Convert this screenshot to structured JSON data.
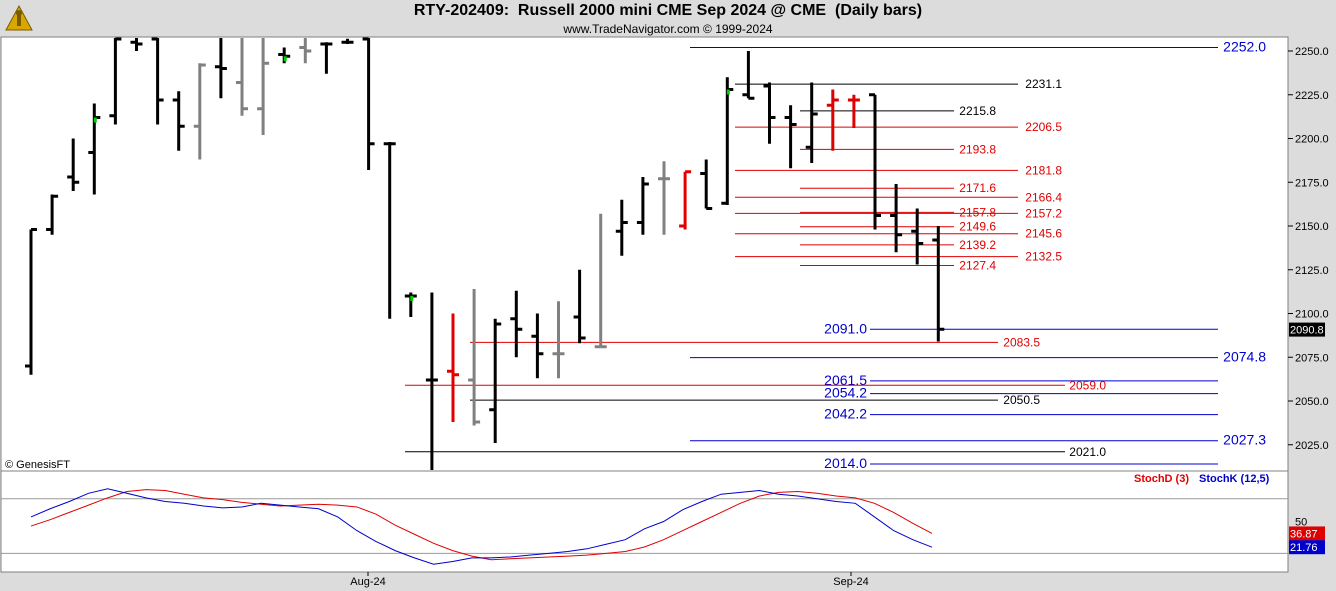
{
  "header": {
    "title": "RTY-202409:  Russell 2000 mini CME Sep 2024 @ CME  (Daily bars)",
    "subtitle": "www.TradeNavigator.com © 1999-2024",
    "watermark": "© GenesisFT"
  },
  "colors": {
    "blue": "#0000cc",
    "red": "#e00000",
    "black": "#000000",
    "gray": "#808080",
    "green": "#00cc00"
  },
  "chart_data": [
    {
      "type": "ohlc",
      "title": "RTY-202409:  Russell 2000 mini CME Sep 2024 @ CME  (Daily bars)",
      "ylim": [
        2010,
        2258
      ],
      "y_ticks": [
        2025.0,
        2050.0,
        2075.0,
        2100.0,
        2125.0,
        2150.0,
        2175.0,
        2200.0,
        2225.0,
        2250.0
      ],
      "x_labels": [
        "Aug-24",
        "Sep-24"
      ],
      "last_price": "2090.8",
      "bars": [
        {
          "o": 2070,
          "h": 2148,
          "l": 2065,
          "c": 2148,
          "color": "black"
        },
        {
          "o": 2148,
          "h": 2168,
          "l": 2145,
          "c": 2167,
          "color": "black"
        },
        {
          "o": 2178,
          "h": 2200,
          "l": 2170,
          "c": 2175,
          "color": "black"
        },
        {
          "o": 2192,
          "h": 2220,
          "l": 2168,
          "c": 2212,
          "color": "black",
          "up_tick": true
        },
        {
          "o": 2213,
          "h": 2268,
          "l": 2208,
          "c": 2265,
          "color": "black"
        },
        {
          "o": 2255,
          "h": 2268,
          "l": 2250,
          "c": 2254,
          "color": "black"
        },
        {
          "o": 2268,
          "h": 2268,
          "l": 2208,
          "c": 2222,
          "color": "black"
        },
        {
          "o": 2222,
          "h": 2227,
          "l": 2193,
          "c": 2207,
          "color": "black"
        },
        {
          "o": 2207,
          "h": 2243,
          "l": 2188,
          "c": 2242,
          "color": "gray"
        },
        {
          "o": 2241,
          "h": 2268,
          "l": 2223,
          "c": 2240,
          "color": "black"
        },
        {
          "o": 2232,
          "h": 2268,
          "l": 2213,
          "c": 2217,
          "color": "gray"
        },
        {
          "o": 2217,
          "h": 2268,
          "l": 2202,
          "c": 2243,
          "color": "gray"
        },
        {
          "o": 2248,
          "h": 2252,
          "l": 2243,
          "c": 2247,
          "color": "black",
          "up_tick": true
        },
        {
          "o": 2252,
          "h": 2268,
          "l": 2243,
          "c": 2250,
          "color": "gray"
        },
        {
          "o": 2254,
          "h": 2255,
          "l": 2237,
          "c": 2254,
          "color": "black"
        },
        {
          "o": 2255,
          "h": 2257,
          "l": 2254,
          "c": 2255,
          "color": "black"
        },
        {
          "o": 2268,
          "h": 2268,
          "l": 2182,
          "c": 2197,
          "color": "black"
        },
        {
          "o": 2197,
          "h": 2198,
          "l": 2097,
          "c": 2197,
          "color": "black"
        },
        {
          "o": 2110,
          "h": 2112,
          "l": 2098,
          "c": 2110,
          "color": "black",
          "up_tick": true
        },
        {
          "o": 2062,
          "h": 2112,
          "l": 2008,
          "c": 2062,
          "color": "black"
        },
        {
          "o": 2067,
          "h": 2100,
          "l": 2038,
          "c": 2065,
          "color": "red"
        },
        {
          "o": 2062,
          "h": 2114,
          "l": 2036,
          "c": 2038,
          "color": "gray"
        },
        {
          "o": 2045,
          "h": 2097,
          "l": 2026,
          "c": 2094,
          "color": "black"
        },
        {
          "o": 2097,
          "h": 2113,
          "l": 2075,
          "c": 2091,
          "color": "black"
        },
        {
          "o": 2087,
          "h": 2100,
          "l": 2063,
          "c": 2077,
          "color": "black"
        },
        {
          "o": 2077,
          "h": 2107,
          "l": 2063,
          "c": 2077,
          "color": "gray"
        },
        {
          "o": 2098,
          "h": 2125,
          "l": 2083,
          "c": 2086,
          "color": "black"
        },
        {
          "o": 2081,
          "h": 2157,
          "l": 2081,
          "c": 2081,
          "color": "gray"
        },
        {
          "o": 2147,
          "h": 2165,
          "l": 2133,
          "c": 2152,
          "color": "black"
        },
        {
          "o": 2152,
          "h": 2178,
          "l": 2145,
          "c": 2174,
          "color": "black"
        },
        {
          "o": 2177,
          "h": 2187,
          "l": 2145,
          "c": 2177,
          "color": "gray"
        },
        {
          "o": 2150,
          "h": 2181,
          "l": 2148,
          "c": 2181,
          "color": "red"
        },
        {
          "o": 2180,
          "h": 2188,
          "l": 2160,
          "c": 2160,
          "color": "black"
        },
        {
          "o": 2163,
          "h": 2235,
          "l": 2162,
          "c": 2228,
          "color": "black",
          "up_tick": true
        },
        {
          "o": 2225,
          "h": 2250,
          "l": 2223,
          "c": 2223,
          "color": "black"
        },
        {
          "o": 2230,
          "h": 2232,
          "l": 2197,
          "c": 2212,
          "color": "black"
        },
        {
          "o": 2212,
          "h": 2219,
          "l": 2183,
          "c": 2208,
          "color": "black"
        },
        {
          "o": 2195,
          "h": 2232,
          "l": 2186,
          "c": 2214,
          "color": "black"
        },
        {
          "o": 2219,
          "h": 2228,
          "l": 2193,
          "c": 2222,
          "color": "red"
        },
        {
          "o": 2222,
          "h": 2225,
          "l": 2206,
          "c": 2222,
          "color": "red"
        },
        {
          "o": 2225,
          "h": 2225,
          "l": 2148,
          "c": 2156,
          "color": "black"
        },
        {
          "o": 2156,
          "h": 2174,
          "l": 2135,
          "c": 2145,
          "color": "black"
        },
        {
          "o": 2147,
          "h": 2160,
          "l": 2128,
          "c": 2140,
          "color": "black"
        },
        {
          "o": 2142,
          "h": 2150,
          "l": 2084,
          "c": 2091,
          "color": "black"
        }
      ],
      "levels": [
        {
          "value": "2252.0",
          "color": "blue",
          "side": "right"
        },
        {
          "value": "2231.1",
          "color": "black",
          "side": "mid"
        },
        {
          "value": "2215.8",
          "color": "black",
          "side": "left"
        },
        {
          "value": "2206.5",
          "color": "red",
          "side": "mid"
        },
        {
          "value": "2193.8",
          "color": "red",
          "side": "left"
        },
        {
          "value": "2181.8",
          "color": "red",
          "side": "mid"
        },
        {
          "value": "2171.6",
          "color": "red",
          "side": "left"
        },
        {
          "value": "2166.4",
          "color": "red",
          "side": "mid"
        },
        {
          "value": "2157.8",
          "color": "red",
          "side": "left"
        },
        {
          "value": "2157.2",
          "color": "red",
          "side": "mid"
        },
        {
          "value": "2149.6",
          "color": "red",
          "side": "left"
        },
        {
          "value": "2145.6",
          "color": "red",
          "side": "mid"
        },
        {
          "value": "2139.2",
          "color": "red",
          "side": "left"
        },
        {
          "value": "2132.5",
          "color": "red",
          "side": "mid"
        },
        {
          "value": "2127.4",
          "color": "red",
          "side": "left"
        },
        {
          "value": "2091.0",
          "color": "blue",
          "side": "farleft"
        },
        {
          "value": "2083.5",
          "color": "red",
          "side": "low"
        },
        {
          "value": "2074.8",
          "color": "blue",
          "side": "right"
        },
        {
          "value": "2061.5",
          "color": "blue",
          "side": "farleft"
        },
        {
          "value": "2059.0",
          "color": "red",
          "side": "lowmid"
        },
        {
          "value": "2054.2",
          "color": "blue",
          "side": "farleft"
        },
        {
          "value": "2050.5",
          "color": "black",
          "side": "low"
        },
        {
          "value": "2042.2",
          "color": "blue",
          "side": "farleft"
        },
        {
          "value": "2027.3",
          "color": "blue",
          "side": "right"
        },
        {
          "value": "2021.0",
          "color": "black",
          "side": "lowmid"
        },
        {
          "value": "2014.0",
          "color": "blue",
          "side": "farleft"
        }
      ]
    },
    {
      "type": "line",
      "ylim": [
        0,
        100
      ],
      "y_ticks": [
        "50"
      ],
      "series": [
        {
          "name": "StochD (3)",
          "color": "red",
          "current": "36.87",
          "values": [
            45,
            52,
            60,
            68,
            76,
            83,
            85,
            84,
            80,
            76,
            74,
            71,
            69,
            67,
            68,
            69,
            68,
            66,
            58,
            46,
            36,
            26,
            18,
            12,
            8,
            9,
            10,
            11,
            12,
            13,
            15,
            17,
            22,
            30,
            40,
            50,
            60,
            70,
            78,
            82,
            83,
            81,
            78,
            76,
            70,
            60,
            48,
            36.87
          ]
        },
        {
          "name": "StochK (12,5)",
          "color": "blue",
          "current": "21.76",
          "values": [
            55,
            64,
            72,
            81,
            86,
            81,
            76,
            72,
            70,
            67,
            65,
            66,
            70,
            68,
            66,
            64,
            55,
            40,
            28,
            18,
            10,
            3,
            6,
            10,
            10,
            11,
            13,
            15,
            17,
            20,
            25,
            30,
            42,
            50,
            63,
            72,
            80,
            82,
            84,
            80,
            78,
            75,
            72,
            70,
            55,
            40,
            30,
            21.76
          ]
        }
      ]
    }
  ]
}
